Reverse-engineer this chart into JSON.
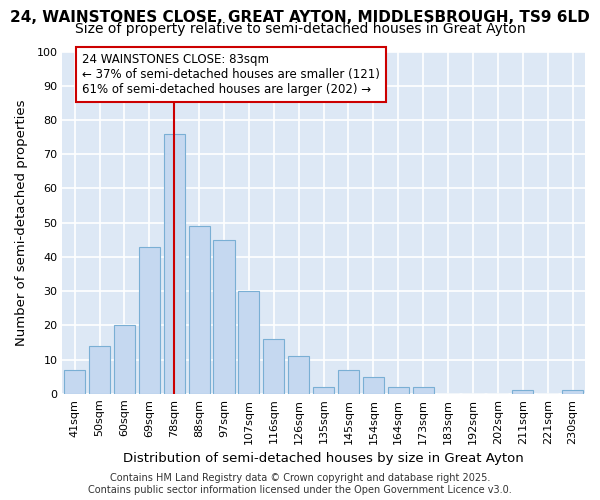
{
  "title1": "24, WAINSTONES CLOSE, GREAT AYTON, MIDDLESBROUGH, TS9 6LD",
  "title2": "Size of property relative to semi-detached houses in Great Ayton",
  "xlabel": "Distribution of semi-detached houses by size in Great Ayton",
  "ylabel": "Number of semi-detached properties",
  "categories": [
    "41sqm",
    "50sqm",
    "60sqm",
    "69sqm",
    "78sqm",
    "88sqm",
    "97sqm",
    "107sqm",
    "116sqm",
    "126sqm",
    "135sqm",
    "145sqm",
    "154sqm",
    "164sqm",
    "173sqm",
    "183sqm",
    "192sqm",
    "202sqm",
    "211sqm",
    "221sqm",
    "230sqm"
  ],
  "values": [
    7,
    14,
    20,
    43,
    76,
    49,
    45,
    30,
    16,
    11,
    2,
    7,
    5,
    2,
    2,
    0,
    0,
    0,
    1,
    0,
    1
  ],
  "bar_color": "#c5d8f0",
  "bar_edge_color": "#7aafd4",
  "vline_x_index": 4,
  "vline_color": "#cc0000",
  "annotation_text": "24 WAINSTONES CLOSE: 83sqm\n← 37% of semi-detached houses are smaller (121)\n61% of semi-detached houses are larger (202) →",
  "annotation_box_color": "#ffffff",
  "annotation_box_edge": "#cc0000",
  "ylim": [
    0,
    100
  ],
  "yticks": [
    0,
    10,
    20,
    30,
    40,
    50,
    60,
    70,
    80,
    90,
    100
  ],
  "background_color": "#dde8f5",
  "grid_color": "#ffffff",
  "fig_background": "#ffffff",
  "footer": "Contains HM Land Registry data © Crown copyright and database right 2025.\nContains public sector information licensed under the Open Government Licence v3.0.",
  "title_fontsize": 11,
  "subtitle_fontsize": 10,
  "axis_label_fontsize": 9.5,
  "tick_fontsize": 8,
  "annotation_fontsize": 8.5,
  "footer_fontsize": 7
}
